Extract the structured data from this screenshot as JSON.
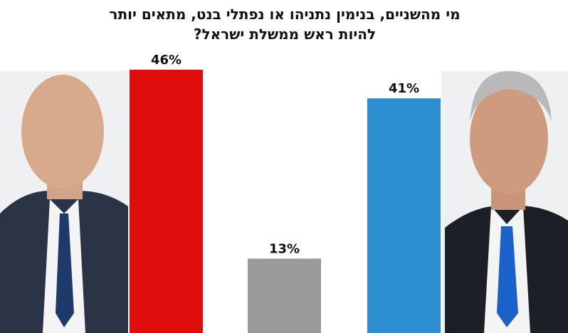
{
  "chart_data": {
    "type": "bar",
    "title": "מי מהשניים, בנימין נתניהו או נפתלי בנט, מתאים יותר להיות ראש ממשלת ישראל?",
    "categories": [
      null,
      null,
      null
    ],
    "values": [
      46,
      13,
      41
    ],
    "value_labels": [
      "46%",
      "13%",
      "41%"
    ],
    "colors": [
      "#e00d0d",
      "#9b9b9b",
      "#2d8fd0"
    ]
  }
}
